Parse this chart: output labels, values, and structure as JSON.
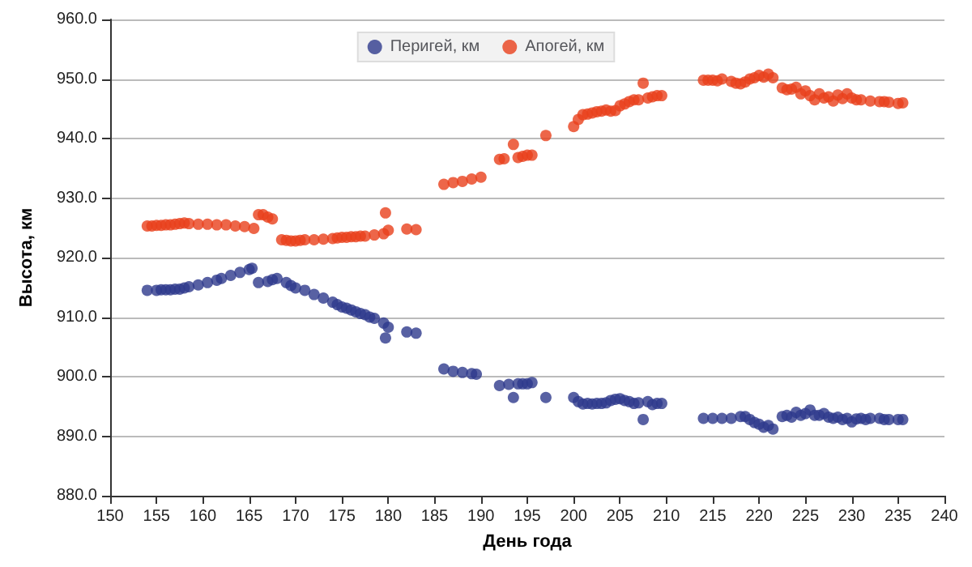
{
  "chart_data": {
    "type": "scatter",
    "xlabel": "День года",
    "ylabel": "Высота, км",
    "xlim": [
      150,
      240
    ],
    "xticks": [
      150,
      155,
      160,
      165,
      170,
      175,
      180,
      185,
      190,
      195,
      200,
      205,
      210,
      215,
      220,
      225,
      230,
      235,
      240
    ],
    "ylim": [
      880,
      960
    ],
    "yticks": [
      {
        "value": 880,
        "label": "880.0"
      },
      {
        "value": 890,
        "label": "890.0"
      },
      {
        "value": 900,
        "label": "900.0"
      },
      {
        "value": 910,
        "label": "910.0"
      },
      {
        "value": 920,
        "label": "920.0"
      },
      {
        "value": 930,
        "label": "930.0"
      },
      {
        "value": 940,
        "label": "940.0"
      },
      {
        "value": 950,
        "label": "950.0"
      },
      {
        "value": 960,
        "label": "960.0"
      }
    ],
    "grid": "y",
    "legend": "top",
    "marker": "circle",
    "series": [
      {
        "name": "Перигей, км",
        "color": "#2e3a8c",
        "x": [
          154,
          155,
          155.5,
          156,
          156.5,
          157,
          157.5,
          158,
          158.5,
          159.5,
          160.5,
          161.5,
          162,
          163,
          164,
          165,
          165.3,
          166,
          167,
          167.5,
          168,
          169,
          169.5,
          170,
          171,
          172,
          173,
          174,
          174.5,
          175,
          175.5,
          176,
          176.5,
          177,
          177.5,
          178,
          178.5,
          179.5,
          179.7,
          180,
          182,
          183,
          186,
          187,
          188,
          189,
          189.5,
          192,
          193,
          193.5,
          194,
          194.5,
          195,
          195.5,
          197,
          200,
          200.5,
          201,
          201.5,
          202,
          202.5,
          203,
          203.5,
          204,
          204.5,
          205,
          205.5,
          206,
          206.5,
          207,
          207.5,
          208,
          208.5,
          209,
          209.5,
          214,
          215,
          216,
          217,
          218,
          218.5,
          219,
          219.5,
          220,
          220.5,
          221,
          221.5,
          222.5,
          223,
          223.5,
          224,
          224.5,
          225,
          225.5,
          226,
          226.5,
          227,
          227.5,
          228,
          228.5,
          229,
          229.5,
          230,
          230.5,
          231,
          231.5,
          232,
          233,
          233.5,
          234,
          235,
          235.5
        ],
        "values": [
          914.5,
          914.5,
          914.6,
          914.6,
          914.6,
          914.7,
          914.7,
          914.9,
          915.1,
          915.4,
          915.8,
          916.2,
          916.5,
          917,
          917.5,
          918,
          918.2,
          915.8,
          916,
          916.3,
          916.5,
          915.8,
          915.3,
          914.9,
          914.5,
          913.8,
          913.2,
          912.5,
          912.1,
          911.7,
          911.5,
          911.2,
          910.9,
          910.6,
          910.4,
          910,
          909.8,
          909,
          906.5,
          908.3,
          907.5,
          907.3,
          901.3,
          900.9,
          900.7,
          900.5,
          900.4,
          898.5,
          898.7,
          896.5,
          898.8,
          898.8,
          898.8,
          899,
          896.5,
          896.5,
          895.8,
          895.4,
          895.5,
          895.4,
          895.5,
          895.5,
          895.6,
          896,
          896.2,
          896.3,
          896,
          895.8,
          895.5,
          895.6,
          892.8,
          895.8,
          895.3,
          895.5,
          895.5,
          893,
          893,
          893,
          893,
          893.3,
          893.3,
          892.8,
          892.3,
          892,
          891.5,
          891.8,
          891.2,
          893.3,
          893.5,
          893.2,
          894,
          893.5,
          893.8,
          894.4,
          893.5,
          893.5,
          893.8,
          893.2,
          893,
          893.2,
          892.8,
          893,
          892.4,
          892.9,
          893,
          892.8,
          893,
          893,
          892.8,
          892.8,
          892.8,
          892.8
        ]
      },
      {
        "name": "Апогей, км",
        "color": "#e8401c",
        "x": [
          154,
          154.5,
          155,
          155.5,
          156,
          156.5,
          157,
          157.5,
          158,
          158.5,
          159.5,
          160.5,
          161.5,
          162.5,
          163.5,
          164.5,
          165.5,
          166,
          166.5,
          167,
          167.5,
          168.5,
          169,
          169.5,
          170,
          170.5,
          171,
          172,
          173,
          174,
          174.5,
          175,
          175.5,
          176,
          176.5,
          177,
          177.5,
          178.5,
          179.5,
          179.7,
          180,
          182,
          183,
          186,
          187,
          188,
          189,
          190,
          192,
          192.5,
          193.5,
          194,
          194.5,
          195,
          195.5,
          197,
          200,
          200.5,
          201,
          201.5,
          202,
          202.5,
          203,
          203.5,
          204,
          204.5,
          205,
          205.5,
          206,
          206.5,
          207,
          207.5,
          208,
          208.5,
          209,
          209.5,
          214,
          214.5,
          215,
          215.5,
          216,
          217,
          217.5,
          218,
          218.5,
          219,
          219.5,
          220,
          220.5,
          221,
          221.5,
          222.5,
          223,
          223.5,
          224,
          224.5,
          225,
          225.5,
          226,
          226.5,
          227,
          227.5,
          228,
          228.5,
          229,
          229.5,
          230,
          230.5,
          231,
          232,
          233,
          233.5,
          234,
          235,
          235.5
        ],
        "values": [
          925.3,
          925.3,
          925.4,
          925.4,
          925.5,
          925.5,
          925.6,
          925.7,
          925.8,
          925.7,
          925.6,
          925.6,
          925.5,
          925.5,
          925.3,
          925.2,
          924.9,
          927.2,
          927.2,
          926.8,
          926.5,
          923,
          922.9,
          922.8,
          922.8,
          922.9,
          923,
          923,
          923.1,
          923.2,
          923.3,
          923.4,
          923.4,
          923.5,
          923.5,
          923.6,
          923.6,
          923.8,
          924,
          927.5,
          924.6,
          924.8,
          924.7,
          932.3,
          932.6,
          932.8,
          933.2,
          933.5,
          936.5,
          936.6,
          939,
          936.8,
          937,
          937.2,
          937.2,
          940.5,
          942,
          943.2,
          944,
          944.1,
          944.3,
          944.5,
          944.6,
          944.8,
          944.6,
          944.7,
          945.5,
          945.8,
          946.2,
          946.5,
          946.5,
          949.3,
          946.8,
          947,
          947.2,
          947.2,
          949.8,
          949.8,
          949.8,
          949.7,
          950,
          949.6,
          949.3,
          949.2,
          949.5,
          950,
          950.2,
          950.6,
          950.3,
          950.8,
          950.2,
          948.5,
          948.2,
          948.3,
          948.6,
          947.5,
          948,
          947.2,
          946.5,
          947.5,
          946.8,
          947,
          946.3,
          947.3,
          946.7,
          947.5,
          946.8,
          946.5,
          946.5,
          946.3,
          946.2,
          946.2,
          946.1,
          945.9,
          946
        ]
      }
    ]
  }
}
